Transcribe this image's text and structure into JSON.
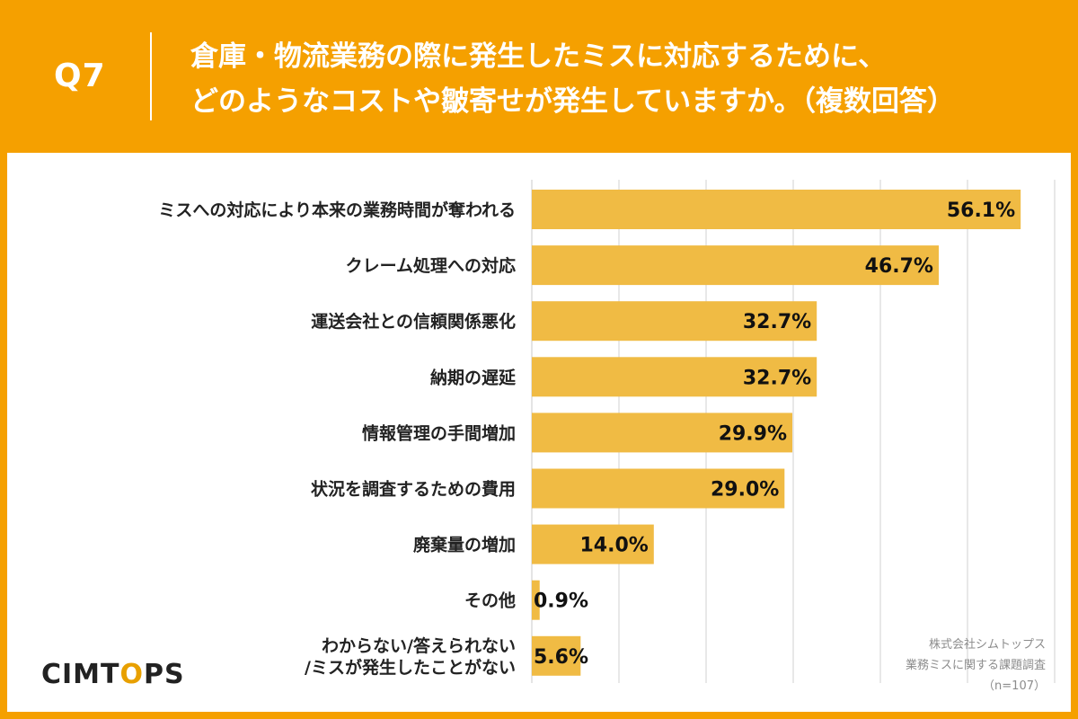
{
  "header": {
    "q_number": "Q7",
    "title_line1": "倉庫・物流業務の際に発生したミスに対応するために、",
    "title_line2": "どのようなコストや皺寄せが発生していますか。（複数回答）"
  },
  "logo": {
    "part1": "CIMT",
    "part2": "O",
    "part3": "PS"
  },
  "source": {
    "line1": "株式会社シムトップス",
    "line2": "業務ミスに関する課題調査",
    "line3": "（n=107）"
  },
  "colors": {
    "background": "#f5a000",
    "bar": "#f0bb44",
    "grid": "#d0d0d0",
    "text": "#222222"
  },
  "chart_data": {
    "type": "bar",
    "orientation": "horizontal",
    "categories": [
      [
        "ミスへの対応により本来の業務時間が奪われる"
      ],
      [
        "クレーム処理への対応"
      ],
      [
        "運送会社との信頼関係悪化"
      ],
      [
        "納期の遅延"
      ],
      [
        "情報管理の手間増加"
      ],
      [
        "状況を調査するための費用"
      ],
      [
        "廃棄量の増加"
      ],
      [
        "その他"
      ],
      [
        "わからない/答えられない",
        "/ミスが発生したことがない"
      ]
    ],
    "values": [
      56.1,
      46.7,
      32.7,
      32.7,
      29.9,
      29.0,
      14.0,
      0.9,
      5.6
    ],
    "value_labels": [
      "56.1%",
      "46.7%",
      "32.7%",
      "32.7%",
      "29.9%",
      "29.0%",
      "14.0%",
      "0.9%",
      "5.6%"
    ],
    "xlim": [
      0,
      60
    ],
    "grid": true
  }
}
